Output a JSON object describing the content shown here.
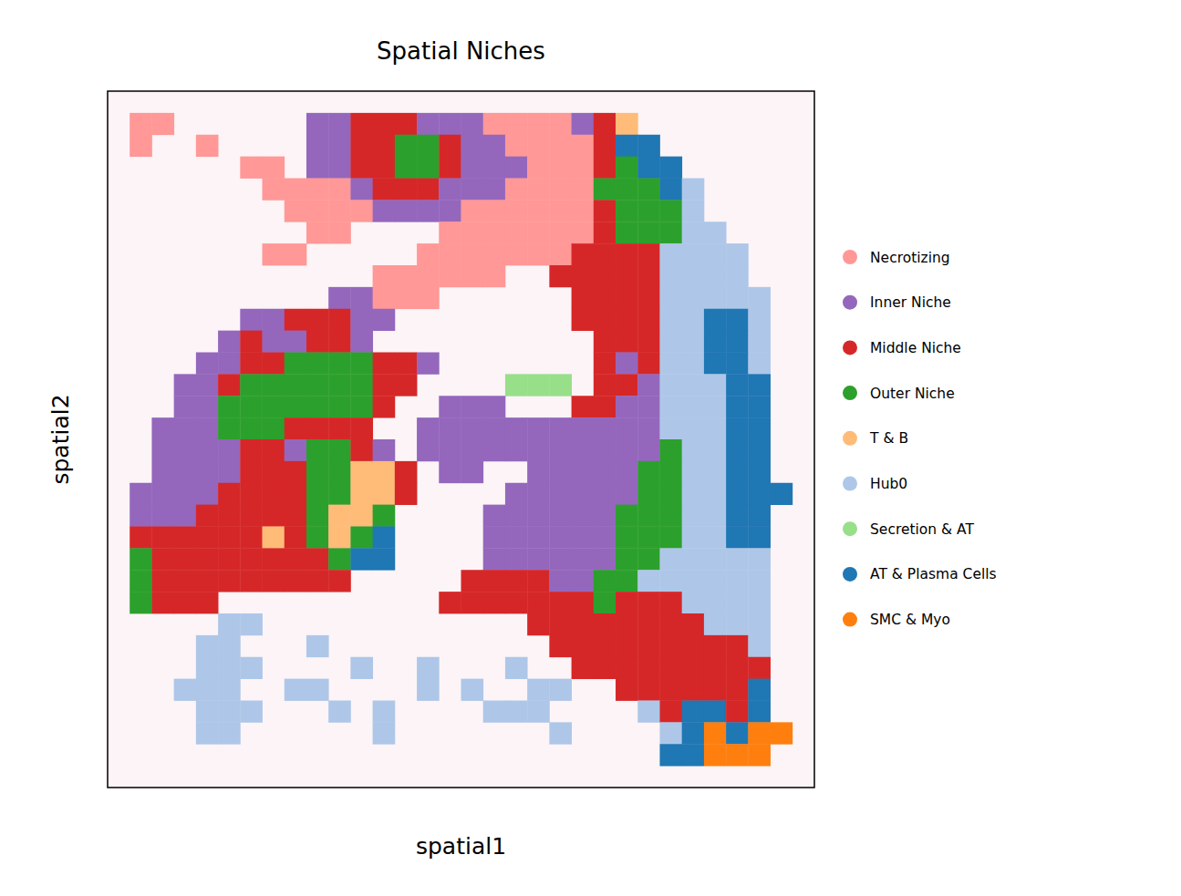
{
  "chart_data": {
    "type": "heatmap",
    "title": "Spatial Niches",
    "xlabel": "spatial1",
    "ylabel": "spatial2",
    "xlim": [
      0,
      32
    ],
    "ylim": [
      32,
      0
    ],
    "tick_labels": false,
    "legend": "right",
    "series": [
      {
        "name": "Necrotizing",
        "color": "#ff9896"
      },
      {
        "name": "Inner Niche",
        "color": "#9467bd"
      },
      {
        "name": "Middle Niche",
        "color": "#d62728"
      },
      {
        "name": "Outer Niche",
        "color": "#2ca02c"
      },
      {
        "name": "T & B",
        "color": "#ffbb78"
      },
      {
        "name": "Hub0",
        "color": "#aec7e8"
      },
      {
        "name": "Secretion & AT",
        "color": "#98df8a"
      },
      {
        "name": "AT & Plasma Cells",
        "color": "#1f77b4"
      },
      {
        "name": "SMC & Myo",
        "color": "#ff7f0e"
      }
    ],
    "cells": [
      [
        null,
        null,
        null,
        null,
        null,
        null,
        null,
        null,
        null,
        null,
        null,
        null,
        null,
        null,
        null,
        null,
        null,
        null,
        null,
        null,
        null,
        null,
        null,
        null,
        null,
        null,
        null,
        null,
        null,
        null,
        null,
        null
      ],
      [
        null,
        0,
        0,
        null,
        null,
        null,
        null,
        null,
        null,
        1,
        1,
        2,
        2,
        2,
        1,
        1,
        1,
        0,
        0,
        0,
        0,
        1,
        2,
        4,
        null,
        null,
        null,
        null,
        null,
        null,
        null,
        null
      ],
      [
        null,
        0,
        null,
        null,
        0,
        null,
        null,
        null,
        null,
        1,
        1,
        2,
        2,
        3,
        3,
        2,
        1,
        1,
        0,
        0,
        0,
        0,
        2,
        7,
        7,
        null,
        null,
        null,
        null,
        null,
        null,
        null
      ],
      [
        null,
        null,
        null,
        null,
        null,
        null,
        0,
        0,
        null,
        1,
        1,
        2,
        2,
        3,
        3,
        2,
        1,
        1,
        1,
        0,
        0,
        0,
        2,
        3,
        7,
        7,
        null,
        null,
        null,
        null,
        null,
        null
      ],
      [
        null,
        null,
        null,
        null,
        null,
        null,
        null,
        0,
        0,
        0,
        0,
        1,
        2,
        2,
        2,
        1,
        1,
        1,
        0,
        0,
        0,
        0,
        3,
        3,
        3,
        7,
        5,
        null,
        null,
        null,
        null,
        null
      ],
      [
        null,
        null,
        null,
        null,
        null,
        null,
        null,
        null,
        0,
        0,
        0,
        0,
        1,
        1,
        1,
        1,
        0,
        0,
        0,
        0,
        0,
        0,
        2,
        3,
        3,
        3,
        5,
        null,
        null,
        null,
        null,
        null
      ],
      [
        null,
        null,
        null,
        null,
        null,
        null,
        null,
        null,
        null,
        0,
        0,
        null,
        null,
        null,
        null,
        0,
        0,
        0,
        0,
        0,
        0,
        0,
        2,
        3,
        3,
        3,
        5,
        5,
        null,
        null,
        null,
        null
      ],
      [
        null,
        null,
        null,
        null,
        null,
        null,
        null,
        0,
        0,
        null,
        null,
        null,
        null,
        null,
        0,
        0,
        0,
        0,
        0,
        0,
        0,
        2,
        2,
        2,
        2,
        5,
        5,
        5,
        5,
        null,
        null,
        null
      ],
      [
        null,
        null,
        null,
        null,
        null,
        null,
        null,
        null,
        null,
        null,
        null,
        null,
        0,
        0,
        0,
        0,
        0,
        0,
        null,
        null,
        2,
        2,
        2,
        2,
        2,
        5,
        5,
        5,
        5,
        null,
        null,
        null
      ],
      [
        null,
        null,
        null,
        null,
        null,
        null,
        null,
        null,
        null,
        null,
        1,
        1,
        0,
        0,
        0,
        null,
        null,
        null,
        null,
        null,
        null,
        2,
        2,
        2,
        2,
        5,
        5,
        5,
        5,
        5,
        null,
        null
      ],
      [
        null,
        null,
        null,
        null,
        null,
        null,
        1,
        1,
        2,
        2,
        2,
        1,
        1,
        null,
        null,
        null,
        null,
        null,
        null,
        null,
        null,
        2,
        2,
        2,
        2,
        5,
        5,
        7,
        7,
        5,
        null,
        null
      ],
      [
        null,
        null,
        null,
        null,
        null,
        1,
        2,
        1,
        1,
        2,
        2,
        1,
        null,
        null,
        null,
        null,
        null,
        null,
        null,
        null,
        null,
        null,
        2,
        2,
        2,
        5,
        5,
        7,
        7,
        5,
        null,
        null
      ],
      [
        null,
        null,
        null,
        null,
        1,
        1,
        2,
        2,
        3,
        3,
        3,
        3,
        2,
        2,
        1,
        null,
        null,
        null,
        null,
        null,
        null,
        null,
        2,
        1,
        2,
        5,
        5,
        7,
        7,
        5,
        null,
        null
      ],
      [
        null,
        null,
        null,
        1,
        1,
        2,
        3,
        3,
        3,
        3,
        3,
        3,
        2,
        2,
        null,
        null,
        null,
        null,
        6,
        6,
        6,
        null,
        2,
        2,
        1,
        5,
        5,
        5,
        7,
        7,
        null,
        null
      ],
      [
        null,
        null,
        null,
        1,
        1,
        3,
        3,
        3,
        3,
        3,
        3,
        3,
        2,
        null,
        null,
        1,
        1,
        1,
        null,
        null,
        null,
        2,
        2,
        1,
        1,
        5,
        5,
        5,
        7,
        7,
        null,
        null
      ],
      [
        null,
        null,
        1,
        1,
        1,
        3,
        3,
        3,
        2,
        2,
        2,
        2,
        null,
        null,
        1,
        1,
        1,
        1,
        1,
        1,
        1,
        1,
        1,
        1,
        1,
        5,
        5,
        5,
        7,
        7,
        null,
        null
      ],
      [
        null,
        null,
        1,
        1,
        1,
        1,
        2,
        2,
        1,
        3,
        3,
        2,
        1,
        null,
        1,
        1,
        1,
        1,
        1,
        1,
        1,
        1,
        1,
        1,
        1,
        3,
        5,
        5,
        7,
        7,
        null,
        null
      ],
      [
        null,
        null,
        1,
        1,
        1,
        1,
        2,
        2,
        2,
        3,
        3,
        4,
        4,
        2,
        null,
        1,
        1,
        null,
        null,
        1,
        1,
        1,
        1,
        1,
        3,
        3,
        5,
        5,
        7,
        7,
        null,
        null
      ],
      [
        null,
        1,
        1,
        1,
        1,
        2,
        2,
        2,
        2,
        3,
        3,
        4,
        4,
        2,
        null,
        null,
        null,
        null,
        1,
        1,
        1,
        1,
        1,
        1,
        3,
        3,
        5,
        5,
        7,
        7,
        7,
        null
      ],
      [
        null,
        1,
        1,
        1,
        2,
        2,
        2,
        2,
        2,
        3,
        4,
        4,
        3,
        null,
        null,
        null,
        null,
        1,
        1,
        1,
        1,
        1,
        1,
        3,
        3,
        3,
        5,
        5,
        7,
        7,
        null,
        null
      ],
      [
        null,
        2,
        2,
        2,
        2,
        2,
        2,
        4,
        2,
        3,
        4,
        3,
        7,
        null,
        null,
        null,
        null,
        1,
        1,
        1,
        1,
        1,
        1,
        3,
        3,
        3,
        5,
        5,
        7,
        7,
        null,
        null
      ],
      [
        null,
        3,
        2,
        2,
        2,
        2,
        2,
        2,
        2,
        2,
        3,
        7,
        7,
        null,
        null,
        null,
        null,
        1,
        1,
        1,
        1,
        1,
        1,
        3,
        3,
        5,
        5,
        5,
        5,
        5,
        null,
        null
      ],
      [
        null,
        3,
        2,
        2,
        2,
        2,
        2,
        2,
        2,
        2,
        2,
        null,
        null,
        null,
        null,
        null,
        2,
        2,
        2,
        2,
        1,
        1,
        3,
        3,
        5,
        5,
        5,
        5,
        5,
        5,
        null,
        null
      ],
      [
        null,
        3,
        2,
        2,
        2,
        null,
        null,
        null,
        null,
        null,
        null,
        null,
        null,
        null,
        null,
        2,
        2,
        2,
        2,
        2,
        2,
        2,
        3,
        2,
        2,
        2,
        5,
        5,
        5,
        5,
        null,
        null
      ],
      [
        null,
        null,
        null,
        null,
        null,
        5,
        5,
        null,
        null,
        null,
        null,
        null,
        null,
        null,
        null,
        null,
        null,
        null,
        null,
        2,
        2,
        2,
        2,
        2,
        2,
        2,
        2,
        5,
        5,
        5,
        null,
        null
      ],
      [
        null,
        null,
        null,
        null,
        5,
        5,
        null,
        null,
        null,
        5,
        null,
        null,
        null,
        null,
        null,
        null,
        null,
        null,
        null,
        null,
        2,
        2,
        2,
        2,
        2,
        2,
        2,
        2,
        2,
        5,
        null,
        null
      ],
      [
        null,
        null,
        null,
        null,
        5,
        5,
        5,
        null,
        null,
        null,
        null,
        5,
        null,
        null,
        5,
        null,
        null,
        null,
        5,
        null,
        null,
        2,
        2,
        2,
        2,
        2,
        2,
        2,
        2,
        2,
        null,
        null
      ],
      [
        null,
        null,
        null,
        5,
        5,
        5,
        null,
        null,
        5,
        5,
        null,
        null,
        null,
        null,
        5,
        null,
        5,
        null,
        null,
        5,
        5,
        null,
        null,
        2,
        2,
        2,
        2,
        2,
        2,
        7,
        null,
        null
      ],
      [
        null,
        null,
        null,
        null,
        5,
        5,
        5,
        null,
        null,
        null,
        5,
        null,
        5,
        null,
        null,
        null,
        null,
        5,
        5,
        5,
        null,
        null,
        null,
        null,
        5,
        2,
        7,
        7,
        2,
        7,
        null,
        null
      ],
      [
        null,
        null,
        null,
        null,
        5,
        5,
        null,
        null,
        null,
        null,
        null,
        null,
        5,
        null,
        null,
        null,
        null,
        null,
        null,
        null,
        5,
        null,
        null,
        null,
        null,
        5,
        7,
        8,
        7,
        8,
        8,
        null
      ],
      [
        null,
        null,
        null,
        null,
        null,
        null,
        null,
        null,
        null,
        null,
        null,
        null,
        null,
        null,
        null,
        null,
        null,
        null,
        null,
        null,
        null,
        null,
        null,
        null,
        null,
        7,
        7,
        8,
        8,
        8,
        null,
        null
      ],
      [
        null,
        null,
        null,
        null,
        null,
        null,
        null,
        null,
        null,
        null,
        null,
        null,
        null,
        null,
        null,
        null,
        null,
        null,
        null,
        null,
        null,
        null,
        null,
        null,
        null,
        null,
        null,
        null,
        null,
        null,
        null,
        null
      ]
    ]
  }
}
